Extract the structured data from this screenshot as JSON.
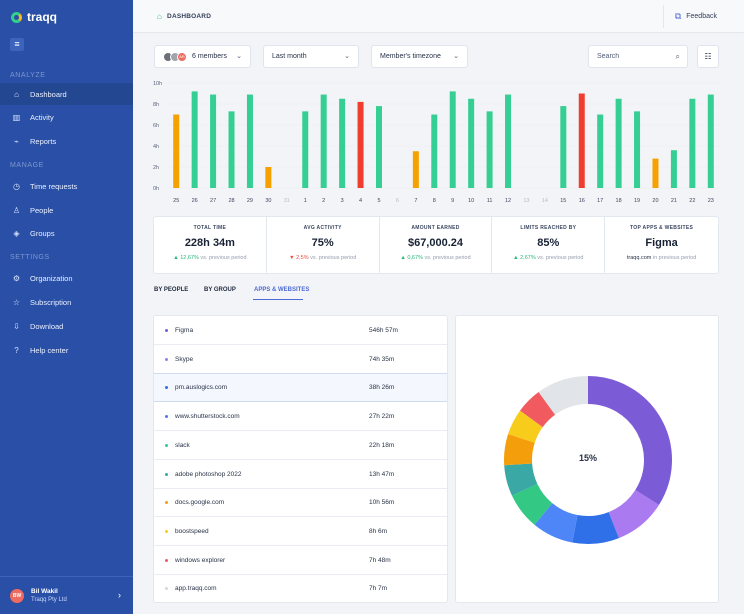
{
  "app": {
    "name": "traqq"
  },
  "sidebar": {
    "sections": [
      {
        "title": "ANALYZE",
        "items": [
          {
            "label": "Dashboard",
            "icon": "home-icon",
            "active": true
          },
          {
            "label": "Activity",
            "icon": "activity-icon"
          },
          {
            "label": "Reports",
            "icon": "reports-icon"
          }
        ]
      },
      {
        "title": "MANAGE",
        "items": [
          {
            "label": "Time requests",
            "icon": "clock-icon"
          },
          {
            "label": "People",
            "icon": "people-icon"
          },
          {
            "label": "Groups",
            "icon": "groups-icon"
          }
        ]
      },
      {
        "title": "SETTINGS",
        "items": [
          {
            "label": "Organization",
            "icon": "gear-icon"
          },
          {
            "label": "Subscription",
            "icon": "star-icon"
          },
          {
            "label": "Download",
            "icon": "download-icon"
          },
          {
            "label": "Help center",
            "icon": "help-icon"
          }
        ]
      }
    ],
    "profile": {
      "initials": "BW",
      "name": "Bil Wakil",
      "company": "Traqq Pty Ltd"
    }
  },
  "header": {
    "title": "DASHBOARD",
    "feedback": "Feedback"
  },
  "filters": {
    "members": "6 members",
    "period": "Last month",
    "timezone": "Member's timezone",
    "search_placeholder": "Search",
    "avatars": [
      {
        "initials": "",
        "color": "#6b6f78"
      },
      {
        "initials": "",
        "color": "#a0a4ab"
      },
      {
        "initials": "AR",
        "color": "#ef6b61"
      }
    ]
  },
  "chart_data": {
    "type": "bar",
    "ylabel": "",
    "ticks": [
      "0h",
      "2h",
      "4h",
      "6h",
      "8h",
      "10h"
    ],
    "ylim": [
      0,
      10
    ],
    "grid": true,
    "categories": [
      "25",
      "26",
      "27",
      "28",
      "29",
      "30",
      "31",
      "1",
      "2",
      "3",
      "4",
      "5",
      "6",
      "7",
      "8",
      "9",
      "10",
      "11",
      "12",
      "13",
      "14",
      "15",
      "16",
      "17",
      "18",
      "19",
      "20",
      "21",
      "22",
      "23"
    ],
    "values": [
      7,
      9.2,
      8.9,
      7.3,
      8.9,
      2,
      0,
      7.3,
      8.9,
      8.5,
      8.2,
      7.8,
      0,
      3.5,
      7,
      9.2,
      8.5,
      7.3,
      8.9,
      0,
      0,
      7.8,
      9,
      7,
      8.5,
      7.3,
      2.8,
      3.6,
      8.5,
      8.9
    ],
    "colors": [
      "#f5a100",
      "#36cf93",
      "#36cf93",
      "#36cf93",
      "#36cf93",
      "#f5a100",
      "#36cf93",
      "#36cf93",
      "#36cf93",
      "#36cf93",
      "#ef3d2e",
      "#36cf93",
      "#36cf93",
      "#f5a100",
      "#36cf93",
      "#36cf93",
      "#36cf93",
      "#36cf93",
      "#36cf93",
      "#36cf93",
      "#36cf93",
      "#36cf93",
      "#ef3d2e",
      "#36cf93",
      "#36cf93",
      "#36cf93",
      "#f5a100",
      "#36cf93",
      "#36cf93",
      "#36cf93"
    ]
  },
  "stats": [
    {
      "label": "TOTAL TIME",
      "value": "228h 34m",
      "change": "12,67%",
      "note": "vs. previous period",
      "trend": "up"
    },
    {
      "label": "AVG ACTIVITY",
      "value": "75%",
      "change": "2,5%",
      "note": "vs. previous period",
      "trend": "down"
    },
    {
      "label": "AMOUNT EARNED",
      "value": "$67,000.24",
      "change": "0,67%",
      "note": "vs. previous period",
      "trend": "up"
    },
    {
      "label": "LIMITS REACHED BY",
      "value": "85%",
      "change": "2,67%",
      "note": "vs. previous period",
      "trend": "up"
    },
    {
      "label": "TOP APPS & WEBSITES",
      "value": "Figma",
      "change": "traqq.com",
      "note": "in previous period",
      "trend": "none"
    }
  ],
  "tabs": [
    "BY PEOPLE",
    "BY GROUP",
    "APPS & WEBSITES"
  ],
  "apps": [
    {
      "name": "Figma",
      "time": "546h 57m",
      "color": "#7b5bd6"
    },
    {
      "name": "Skype",
      "time": "74h 35m",
      "color": "#9b7af2"
    },
    {
      "name": "pm.auslogics.com",
      "time": "38h 26m",
      "color": "#2f6fe8"
    },
    {
      "name": "www.shutterstock.com",
      "time": "27h 22m",
      "color": "#4d78f0"
    },
    {
      "name": "slack",
      "time": "22h 18m",
      "color": "#2ecf8c"
    },
    {
      "name": "adobe photoshop 2022",
      "time": "13h 47m",
      "color": "#3aa8a4"
    },
    {
      "name": "docs.google.com",
      "time": "10h 56m",
      "color": "#f59e0b"
    },
    {
      "name": "boostspeed",
      "time": "8h 6m",
      "color": "#f8cc1b"
    },
    {
      "name": "windows explorer",
      "time": "7h 48m",
      "color": "#f15b60"
    },
    {
      "name": "app.traqq.com",
      "time": "7h 7m",
      "color": "#d5d9df"
    }
  ],
  "donut": {
    "center_label": "15%",
    "segments": [
      {
        "value": 34,
        "color": "#7b5bd6"
      },
      {
        "value": 10,
        "color": "#a97af0"
      },
      {
        "value": 9,
        "color": "#2f6fe8"
      },
      {
        "value": 8,
        "color": "#4f86f7"
      },
      {
        "value": 7,
        "color": "#33c985"
      },
      {
        "value": 6,
        "color": "#3aa8a4"
      },
      {
        "value": 6,
        "color": "#f59e0b"
      },
      {
        "value": 5,
        "color": "#f8cc1b"
      },
      {
        "value": 5,
        "color": "#f15b60"
      },
      {
        "value": 10,
        "color": "#e1e4e8"
      }
    ]
  }
}
